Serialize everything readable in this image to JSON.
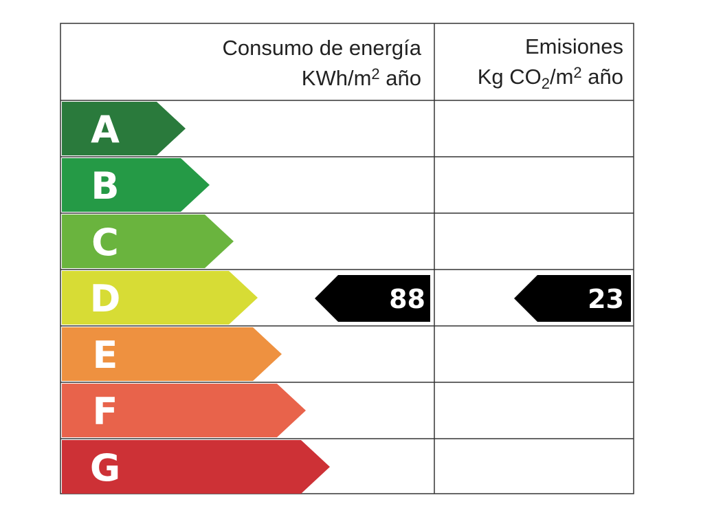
{
  "header": {
    "energy": {
      "title": "Consumo de energía",
      "unit": [
        "KWh/m",
        "2",
        " año"
      ]
    },
    "emissions": {
      "title": "Emisiones",
      "unit": [
        "Kg CO",
        "2",
        "/m",
        "2",
        " año"
      ]
    }
  },
  "classes": [
    {
      "label": "A",
      "color": "#2a7a3c"
    },
    {
      "label": "B",
      "color": "#259a46"
    },
    {
      "label": "C",
      "color": "#6ab43e"
    },
    {
      "label": "D",
      "color": "#d7dc35"
    },
    {
      "label": "E",
      "color": "#ee9140"
    },
    {
      "label": "F",
      "color": "#e8634b"
    },
    {
      "label": "G",
      "color": "#cd3136"
    }
  ],
  "rating": {
    "class": "D",
    "energy": 88,
    "emissions": 23
  }
}
